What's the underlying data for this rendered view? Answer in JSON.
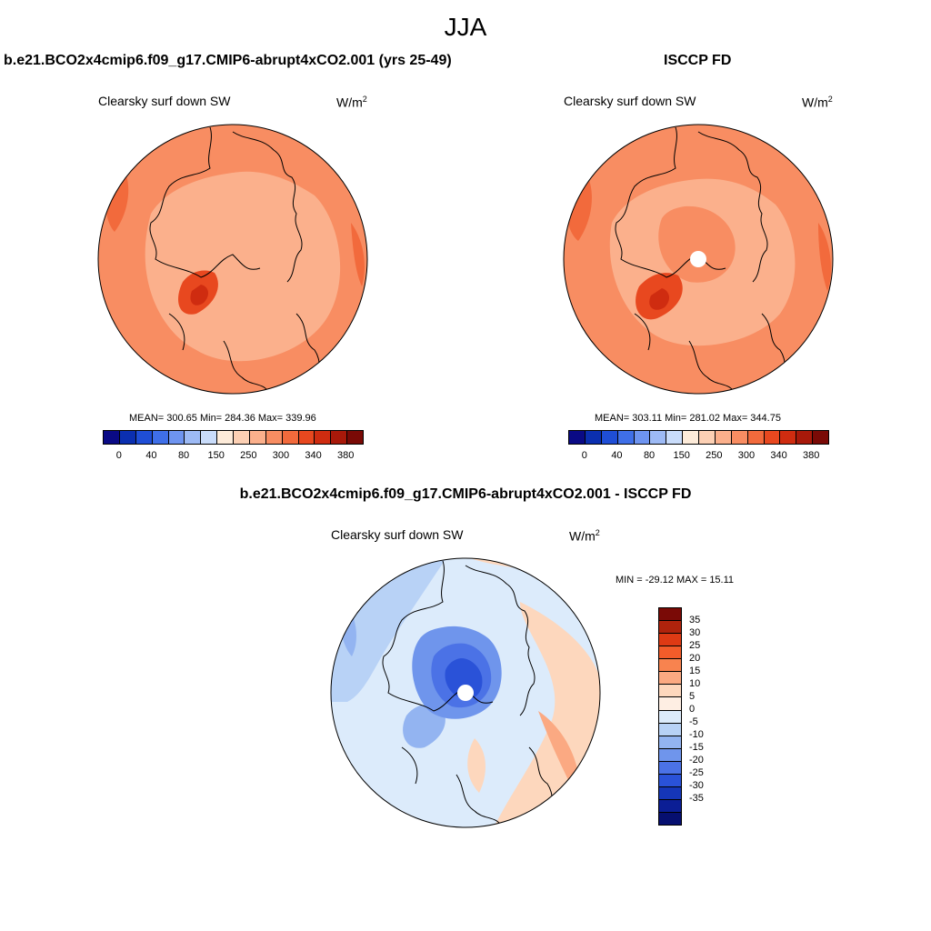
{
  "title": "JJA",
  "panels": [
    {
      "title": "b.e21.BCO2x4cmip6.f09_g17.CMIP6-abrupt4xCO2.001 (yrs 25-49)",
      "variable": "Clearsky surf down SW",
      "units": "W/m",
      "units_sup": "2",
      "stats": "MEAN= 300.65  Min= 284.36  Max= 339.96",
      "mean": 300.65,
      "min": 284.36,
      "max": 339.96,
      "pole_hole": false
    },
    {
      "title": "ISCCP FD",
      "variable": "Clearsky surf down SW",
      "units": "W/m",
      "units_sup": "2",
      "stats": "MEAN= 303.11  Min= 281.02  Max= 344.75",
      "mean": 303.11,
      "min": 281.02,
      "max": 344.75,
      "pole_hole": true
    },
    {
      "title": "b.e21.BCO2x4cmip6.f09_g17.CMIP6-abrupt4xCO2.001 - ISCCP FD",
      "variable": "Clearsky surf down SW",
      "units": "W/m",
      "units_sup": "2",
      "stats": "MIN = -29.12 MAX =  15.11",
      "min": -29.12,
      "max": 15.11,
      "pole_hole": true
    }
  ],
  "abs_colorbar": {
    "colors": [
      "#0a0a85",
      "#0b2fb0",
      "#1f4ed6",
      "#3f6fe8",
      "#6e94f0",
      "#9dbaf5",
      "#c9dcfa",
      "#fdebd9",
      "#fcd0b4",
      "#fbb08c",
      "#f88d62",
      "#f26a3c",
      "#e8481f",
      "#cf2c10",
      "#a8190a",
      "#7a0a06"
    ],
    "tick_labels": [
      "0",
      "40",
      "80",
      "150",
      "250",
      "300",
      "340",
      "380"
    ]
  },
  "diff_colorbar": {
    "colors": [
      "#7a0a06",
      "#b0230c",
      "#de3a14",
      "#f25c2a",
      "#f8834f",
      "#fba982",
      "#fdd7bd",
      "#feeee3",
      "#dcebfb",
      "#b8d2f6",
      "#93b4f1",
      "#6f95ec",
      "#4b72e6",
      "#2a52d8",
      "#1536b8",
      "#0b1e95",
      "#060f70"
    ],
    "tick_labels": [
      "35",
      "30",
      "25",
      "20",
      "15",
      "10",
      "5",
      "0",
      "-5",
      "-10",
      "-15",
      "-20",
      "-25",
      "-30",
      "-35"
    ]
  }
}
